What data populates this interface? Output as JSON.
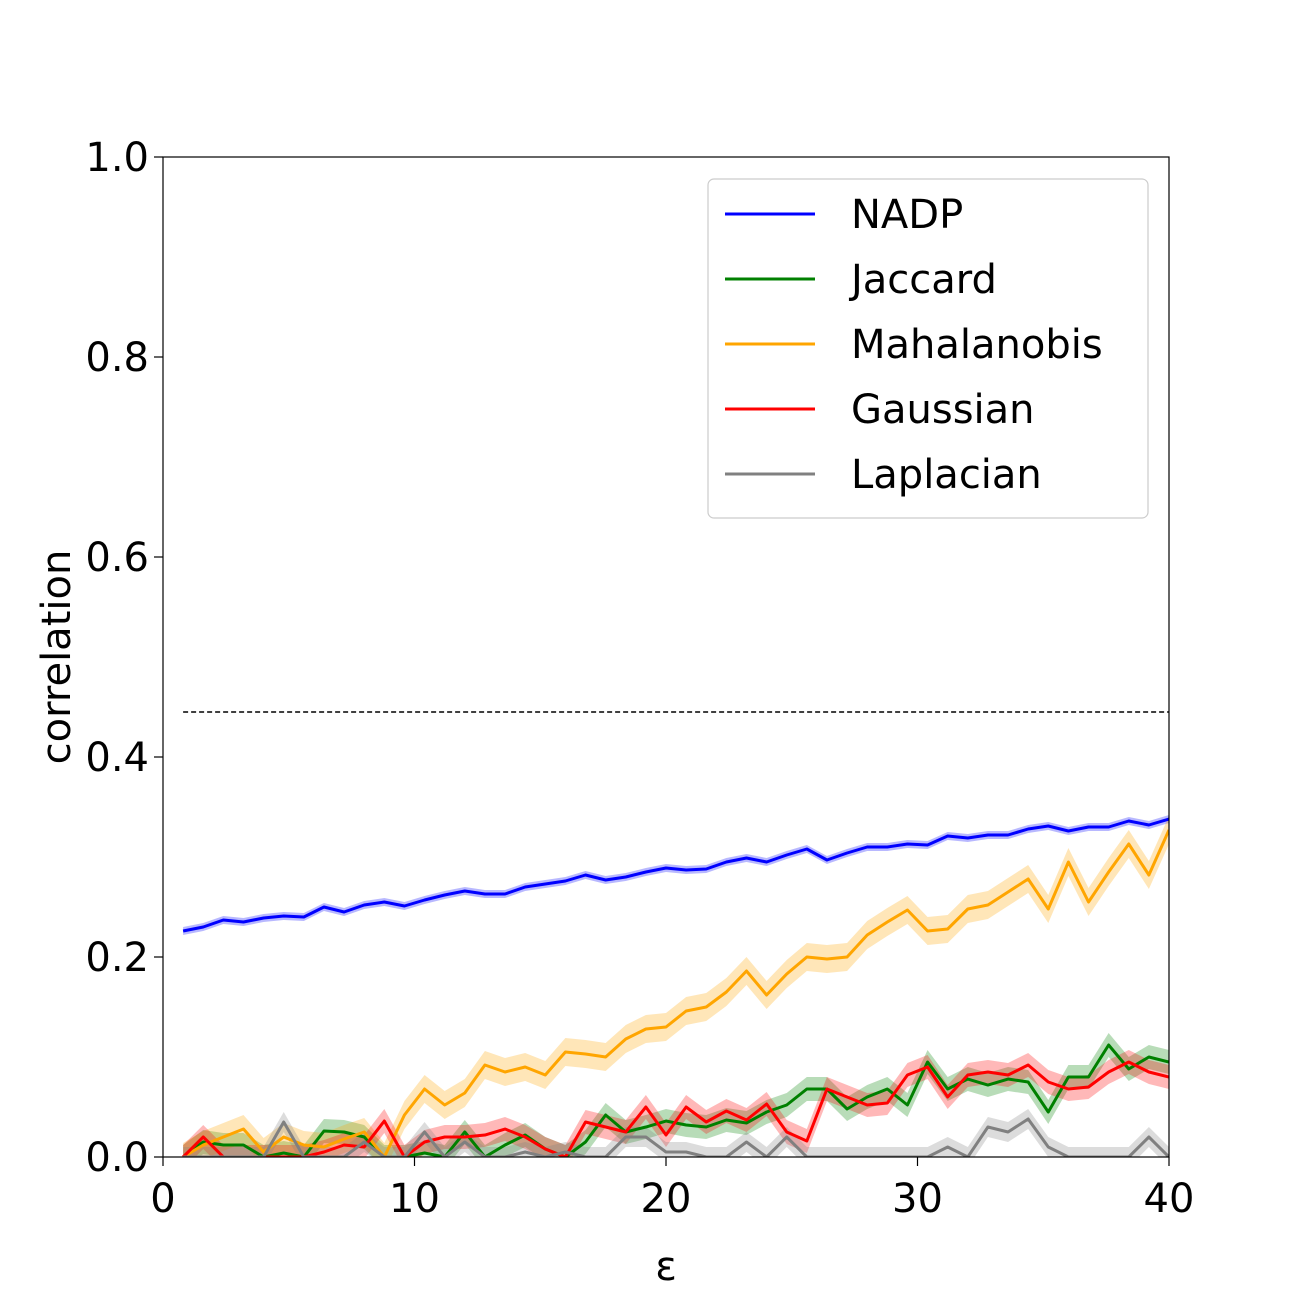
{
  "chart_data": {
    "type": "line",
    "xlabel": "ε",
    "ylabel": "correlation",
    "xlim": [
      0,
      40
    ],
    "ylim": [
      0.0,
      1.0
    ],
    "x_ticks": [
      "0",
      "10",
      "20",
      "30",
      "40"
    ],
    "y_ticks": [
      "0.0",
      "0.2",
      "0.4",
      "0.6",
      "0.8",
      "1.0"
    ],
    "legend_position": "top-right",
    "grid": false,
    "reference_line": {
      "y": 0.445,
      "style": "dashed",
      "color": "#000000"
    },
    "x": [
      0.8,
      1.6,
      2.4,
      3.2,
      4.0,
      4.8,
      5.6,
      6.4,
      7.2,
      8.0,
      8.8,
      9.6,
      10.4,
      11.2,
      12.0,
      12.8,
      13.6,
      14.4,
      15.2,
      16.0,
      16.8,
      17.6,
      18.4,
      19.2,
      20.0,
      20.8,
      21.6,
      22.4,
      23.2,
      24.0,
      24.8,
      25.6,
      26.4,
      27.2,
      28.0,
      28.8,
      29.6,
      30.4,
      31.2,
      32.0,
      32.8,
      33.6,
      34.4,
      35.2,
      36.0,
      36.8,
      37.6,
      38.4,
      39.2,
      40.0
    ],
    "series": [
      {
        "name": "NADP",
        "color": "#0000ff",
        "values": [
          0.226,
          0.23,
          0.237,
          0.235,
          0.239,
          0.241,
          0.24,
          0.25,
          0.245,
          0.252,
          0.255,
          0.251,
          0.257,
          0.262,
          0.266,
          0.263,
          0.263,
          0.27,
          0.273,
          0.276,
          0.282,
          0.277,
          0.28,
          0.285,
          0.289,
          0.287,
          0.288,
          0.295,
          0.299,
          0.295,
          0.302,
          0.308,
          0.297,
          0.304,
          0.31,
          0.31,
          0.313,
          0.312,
          0.321,
          0.319,
          0.322,
          0.322,
          0.328,
          0.331,
          0.326,
          0.33,
          0.33,
          0.336,
          0.332,
          0.338
        ],
        "band": 0.004
      },
      {
        "name": "Jaccard",
        "color": "#008000",
        "values": [
          0.0,
          0.015,
          0.012,
          0.012,
          0.0,
          0.004,
          0.0,
          0.026,
          0.025,
          0.02,
          0.0,
          0.0,
          0.004,
          0.0,
          0.025,
          0.0,
          0.012,
          0.022,
          0.008,
          0.0,
          0.015,
          0.042,
          0.025,
          0.03,
          0.036,
          0.032,
          0.03,
          0.037,
          0.034,
          0.045,
          0.052,
          0.068,
          0.068,
          0.048,
          0.06,
          0.068,
          0.052,
          0.095,
          0.068,
          0.078,
          0.072,
          0.078,
          0.075,
          0.045,
          0.08,
          0.08,
          0.112,
          0.088,
          0.1,
          0.095
        ],
        "band": 0.012
      },
      {
        "name": "Mahalanobis",
        "color": "#ffa500",
        "values": [
          0.0,
          0.012,
          0.02,
          0.028,
          0.005,
          0.02,
          0.012,
          0.01,
          0.018,
          0.025,
          0.0,
          0.042,
          0.068,
          0.052,
          0.064,
          0.092,
          0.085,
          0.09,
          0.082,
          0.105,
          0.103,
          0.1,
          0.118,
          0.128,
          0.13,
          0.146,
          0.15,
          0.165,
          0.186,
          0.162,
          0.183,
          0.2,
          0.198,
          0.2,
          0.222,
          0.235,
          0.247,
          0.226,
          0.228,
          0.248,
          0.252,
          0.265,
          0.278,
          0.248,
          0.295,
          0.255,
          0.285,
          0.313,
          0.282,
          0.327
        ],
        "band": 0.014
      },
      {
        "name": "Gaussian",
        "color": "#ff0000",
        "values": [
          0.0,
          0.02,
          0.0,
          0.0,
          0.0,
          0.0,
          0.0,
          0.005,
          0.012,
          0.01,
          0.036,
          0.0,
          0.015,
          0.02,
          0.02,
          0.022,
          0.028,
          0.02,
          0.008,
          0.0,
          0.035,
          0.03,
          0.025,
          0.05,
          0.022,
          0.05,
          0.035,
          0.046,
          0.037,
          0.053,
          0.025,
          0.016,
          0.068,
          0.06,
          0.052,
          0.054,
          0.082,
          0.09,
          0.06,
          0.082,
          0.085,
          0.082,
          0.092,
          0.075,
          0.068,
          0.07,
          0.085,
          0.095,
          0.085,
          0.08
        ],
        "band": 0.012
      },
      {
        "name": "Laplacian",
        "color": "#808080",
        "values": [
          0.0,
          0.0,
          0.0,
          0.0,
          0.0,
          0.035,
          0.0,
          0.0,
          0.0,
          0.015,
          0.0,
          0.0,
          0.025,
          0.0,
          0.015,
          0.0,
          0.0,
          0.005,
          0.0,
          0.005,
          0.0,
          0.0,
          0.02,
          0.02,
          0.005,
          0.005,
          0.0,
          0.0,
          0.015,
          0.0,
          0.02,
          0.0,
          0.0,
          0.0,
          0.0,
          0.0,
          0.0,
          0.0,
          0.01,
          0.0,
          0.03,
          0.025,
          0.038,
          0.01,
          0.0,
          0.0,
          0.0,
          0.0,
          0.02,
          0.0
        ],
        "band": 0.01
      }
    ]
  }
}
